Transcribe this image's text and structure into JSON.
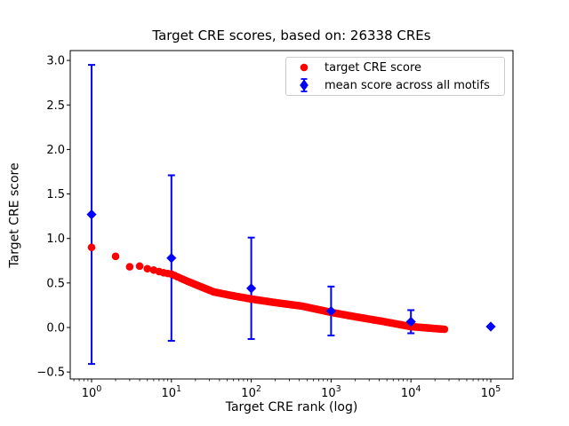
{
  "figure": {
    "title": "Target CRE scores, based on: 26338 CREs",
    "xlabel": "Target CRE rank (log)",
    "ylabel": "Target CRE score"
  },
  "legend": {
    "items": [
      {
        "label": "target CRE score",
        "marker": "red-dot"
      },
      {
        "label": "mean score across all motifs",
        "marker": "blue-diamond-errorbar"
      }
    ]
  },
  "colors": {
    "red": "#ff0000",
    "blue": "#0000ff",
    "axis": "#000000",
    "legend_border": "#cccccc"
  },
  "chart_data": {
    "type": "scatter",
    "title": "Target CRE scores, based on: 26338 CREs",
    "xlabel": "Target CRE rank (log)",
    "ylabel": "Target CRE score",
    "x_scale": "log10",
    "xlim_log10": [
      -0.267,
      5.278
    ],
    "ylim": [
      -0.578,
      3.11
    ],
    "x_major_ticks_exponents": [
      0,
      1,
      2,
      3,
      4,
      5
    ],
    "x_minor_ticks": "logdecades 2-9",
    "y_ticks": [
      {
        "v": -0.5,
        "label": "−0.5"
      },
      {
        "v": 0.0,
        "label": "0.0"
      },
      {
        "v": 0.5,
        "label": "0.5"
      },
      {
        "v": 1.0,
        "label": "1.0"
      },
      {
        "v": 1.5,
        "label": "1.5"
      },
      {
        "v": 2.0,
        "label": "2.0"
      },
      {
        "v": 2.5,
        "label": "2.5"
      },
      {
        "v": 3.0,
        "label": "3.0"
      }
    ],
    "grid": false,
    "legend_position": "upper right",
    "series": [
      {
        "name": "target CRE score",
        "type": "scatter",
        "color": "#ff0000",
        "n_points": 26338,
        "max_rank": 26338,
        "profile_log10rank_vs_score": [
          [
            0.0,
            0.9
          ],
          [
            0.3,
            0.8
          ],
          [
            0.48,
            0.68
          ],
          [
            0.6,
            0.69
          ],
          [
            0.7,
            0.66
          ],
          [
            0.78,
            0.645
          ],
          [
            0.9,
            0.615
          ],
          [
            1.0,
            0.6
          ],
          [
            1.2,
            0.52
          ],
          [
            1.53,
            0.4
          ],
          [
            1.75,
            0.36
          ],
          [
            2.0,
            0.32
          ],
          [
            2.3,
            0.28
          ],
          [
            2.64,
            0.24
          ],
          [
            3.0,
            0.17
          ],
          [
            3.31,
            0.12
          ],
          [
            3.64,
            0.07
          ],
          [
            4.0,
            0.01
          ],
          [
            4.4206,
            -0.02
          ]
        ],
        "note": "26338 points; score decreases monotonically with log rank from 0.90 at rank 1 to ~-0.02 at rank 26338"
      },
      {
        "name": "mean score across all motifs",
        "type": "errorbar",
        "color": "#0000ff",
        "marker": "diamond",
        "ranks": [
          1,
          10,
          100,
          1000,
          10000,
          100000
        ],
        "means": [
          1.27,
          0.78,
          0.44,
          0.185,
          0.065,
          0.01
        ],
        "err": [
          1.68,
          0.93,
          0.57,
          0.275,
          0.13,
          0.0
        ]
      }
    ]
  }
}
